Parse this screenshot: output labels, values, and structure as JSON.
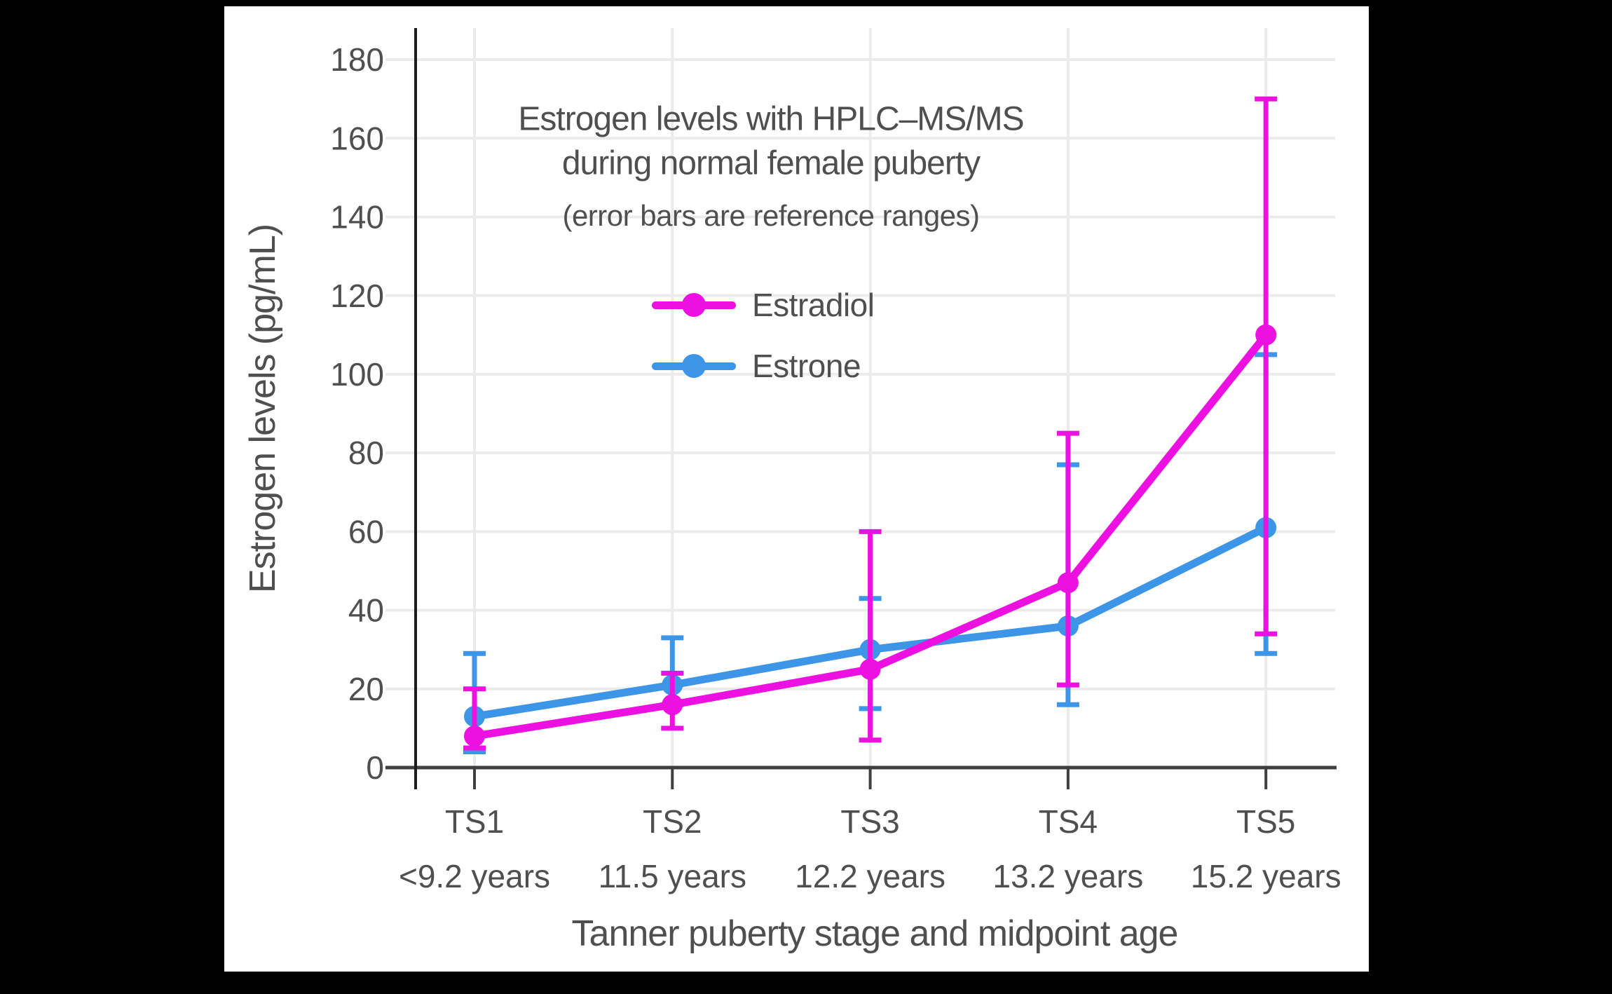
{
  "colors": {
    "page_background": "#000000",
    "canvas_background": "#ffffff",
    "text": "#4f4f4f",
    "grid": "#ebebeb",
    "x_axis": "#3f3f3f",
    "y_axis": "#1c1c1c",
    "estradiol": "#ec11e0",
    "estrone": "#3d95e8"
  },
  "chart_data": {
    "type": "line",
    "title_line1": "Estrogen levels with HPLC–MS/MS",
    "title_line2": "during normal female puberty",
    "subtitle": "(error bars are reference ranges)",
    "ylabel": "Estrogen levels (pg/mL)",
    "xlabel": "Tanner puberty stage and midpoint age",
    "categories": [
      "TS1",
      "TS2",
      "TS3",
      "TS4",
      "TS5"
    ],
    "category_ages": [
      "<9.2 years",
      "11.5 years",
      "12.2 years",
      "13.2 years",
      "15.2 years"
    ],
    "yticks": [
      0,
      20,
      40,
      60,
      80,
      100,
      120,
      140,
      160,
      180
    ],
    "ylim": [
      0,
      188
    ],
    "grid": true,
    "legend_position": "upper-center-inside",
    "error_bar_meaning": "reference ranges",
    "series": [
      {
        "name": "Estradiol",
        "color": "#ec11e0",
        "values": [
          8,
          16,
          25,
          47,
          110
        ],
        "error_low": [
          5,
          10,
          7,
          21,
          34
        ],
        "error_high": [
          20,
          24,
          60,
          85,
          170
        ]
      },
      {
        "name": "Estrone",
        "color": "#3d95e8",
        "values": [
          13,
          21,
          30,
          36,
          61
        ],
        "error_low": [
          4,
          16,
          15,
          16,
          29
        ],
        "error_high": [
          29,
          33,
          43,
          77,
          105
        ]
      }
    ]
  }
}
